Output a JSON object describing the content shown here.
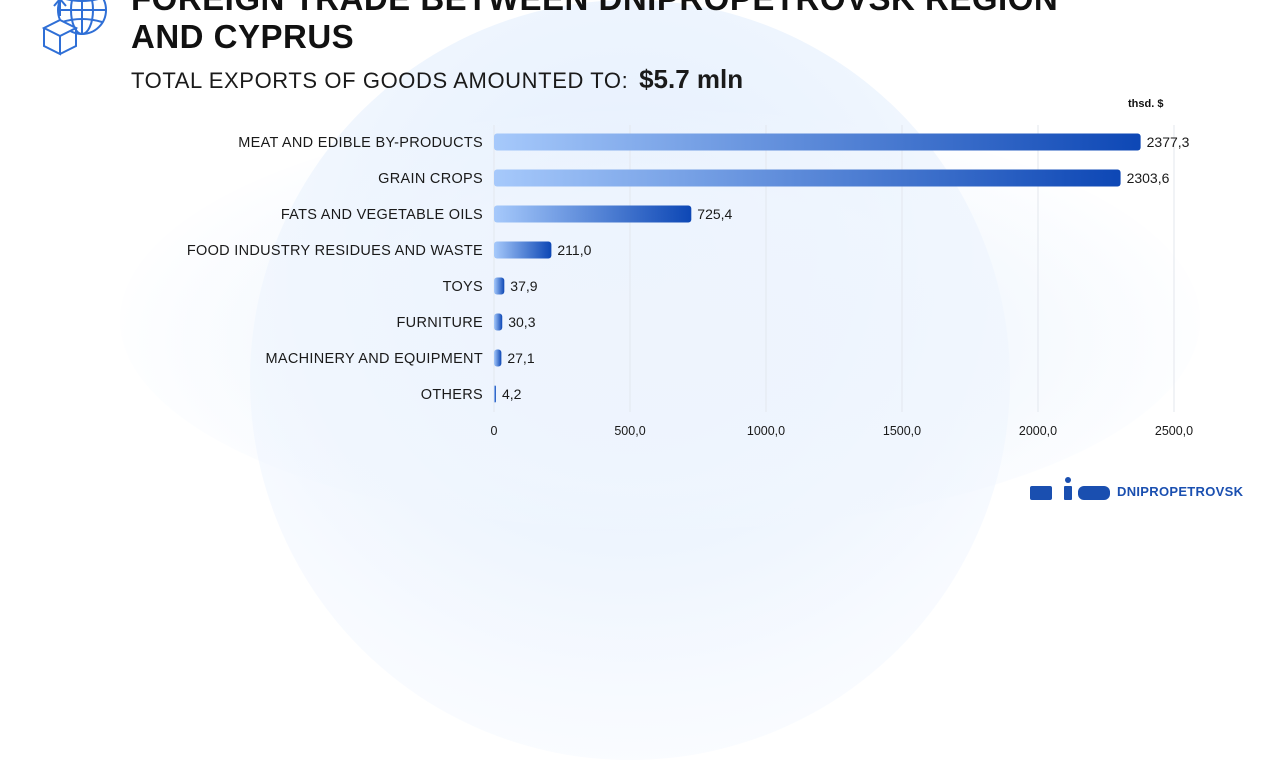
{
  "header": {
    "title": "FOREIGN TRADE BETWEEN DNIPROPETROVSK REGION AND CYPRUS",
    "subtitle_text": "TOTAL EXPORTS OF GOODS AMOUNTED TO:",
    "subtitle_value": "$5.7 mln",
    "unit": "thsd. $"
  },
  "brand": {
    "name": "DNIPROPETROVSK"
  },
  "colors": {
    "bar_light": "#a6c9fb",
    "bar_dark": "#0d47b5",
    "grid": "#e3e7ee",
    "label": "#1a1a1a"
  },
  "chart_data": {
    "type": "bar",
    "orientation": "horizontal",
    "categories": [
      "MEAT AND EDIBLE BY-PRODUCTS",
      "GRAIN CROPS",
      "FATS AND VEGETABLE OILS",
      "FOOD INDUSTRY RESIDUES AND WASTE",
      "TOYS",
      "FURNITURE",
      "MACHINERY AND EQUIPMENT",
      "OTHERS"
    ],
    "values": [
      2377.3,
      2303.6,
      725.4,
      211.0,
      37.9,
      30.3,
      27.1,
      4.2
    ],
    "value_labels": [
      "2377,3",
      "2303,6",
      "725,4",
      "211,0",
      "37,9",
      "30,3",
      "27,1",
      "4,2"
    ],
    "xlim": [
      0,
      2500
    ],
    "x_ticks": [
      0,
      500,
      1000,
      1500,
      2000,
      2500
    ],
    "x_tick_labels": [
      "0",
      "500,0",
      "1000,0",
      "1500,0",
      "2000,0",
      "2500,0"
    ],
    "grid": true,
    "legend": false
  }
}
